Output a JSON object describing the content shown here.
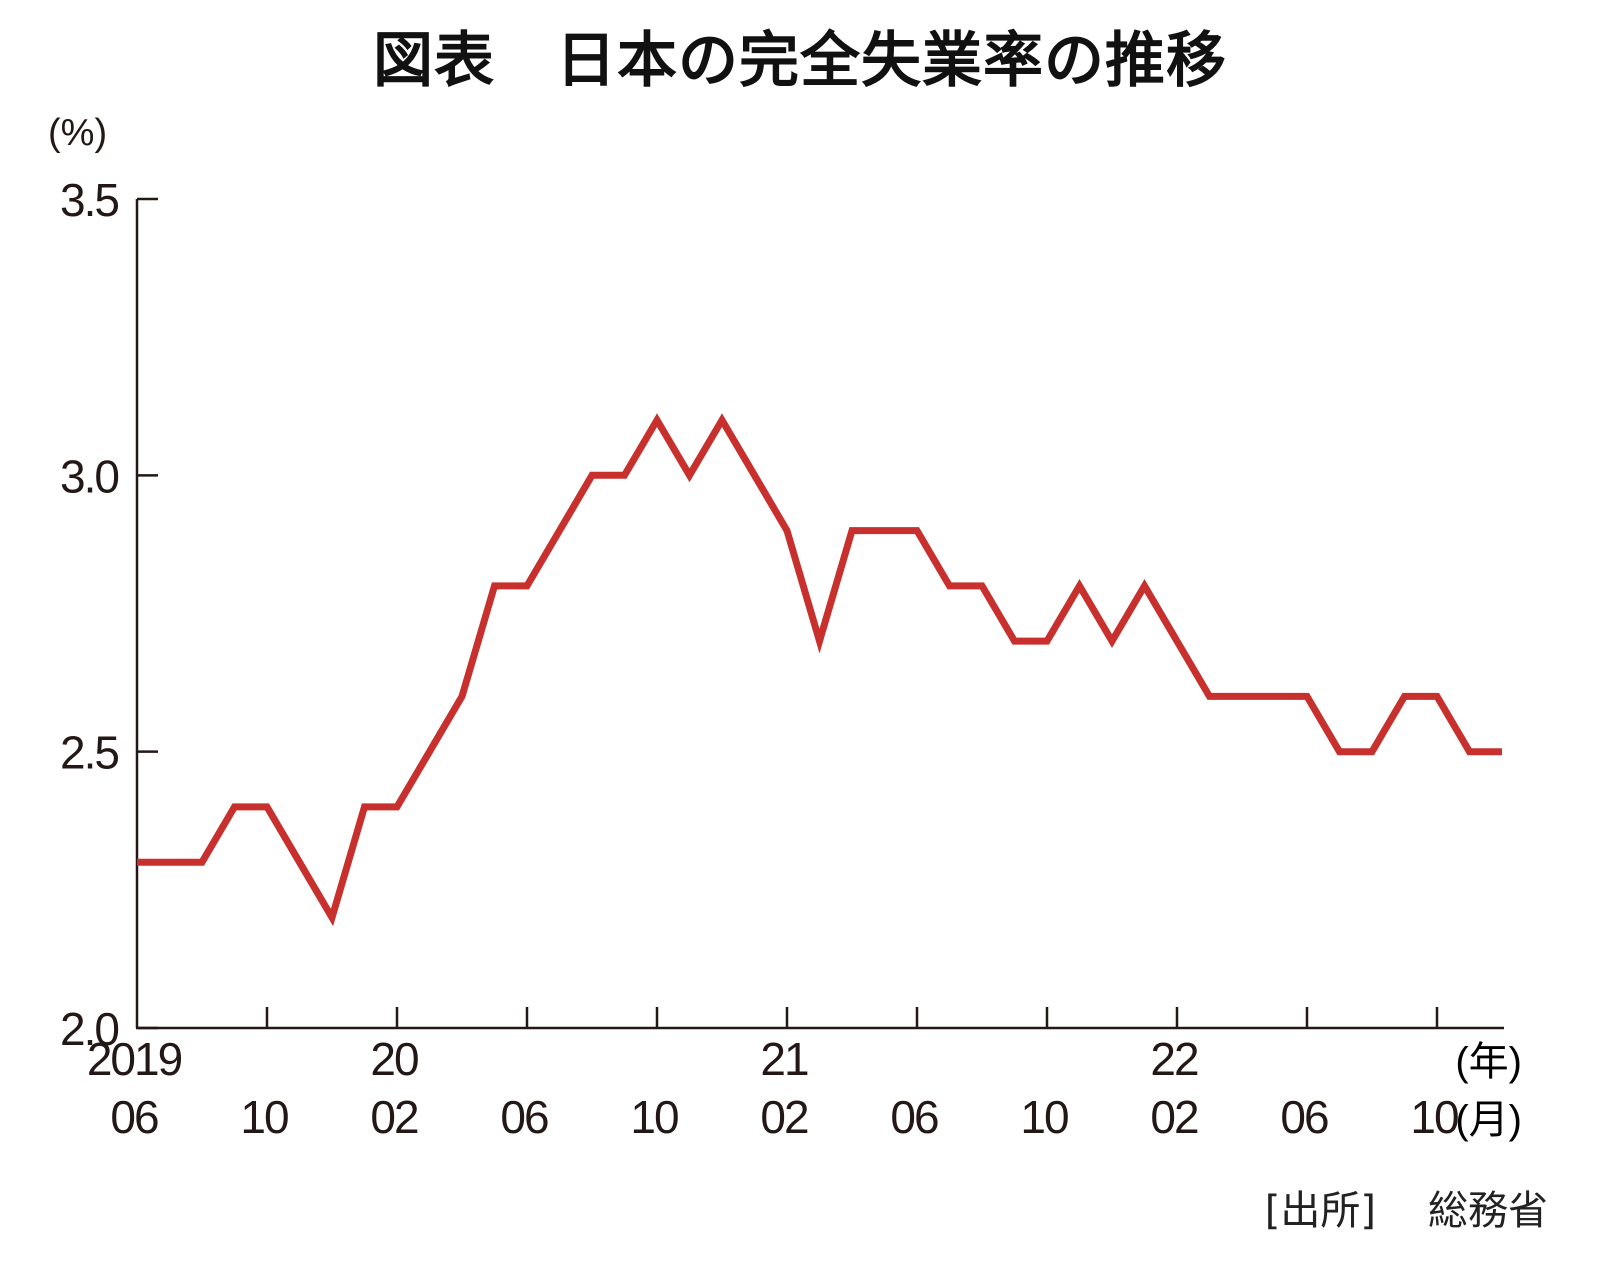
{
  "title": "図表　日本の完全失業率の推移",
  "y_unit": "(%)",
  "x_unit_year": "(年)",
  "x_unit_month": "(月)",
  "source_label": "[出所]",
  "source_value": "総務省",
  "colors": {
    "line": "#C8302E",
    "axis": "#231815"
  },
  "chart_data": {
    "type": "line",
    "title": "図表　日本の完全失業率の推移",
    "xlabel": "(年)(月)",
    "ylabel": "(%)",
    "ylim": [
      2.0,
      3.5
    ],
    "yticks": [
      "2.0",
      "2.5",
      "3.0",
      "3.5"
    ],
    "xtick_labels": [
      {
        "year": "2019",
        "month": "06"
      },
      {
        "year": "",
        "month": "10"
      },
      {
        "year": "20",
        "month": "02"
      },
      {
        "year": "",
        "month": "06"
      },
      {
        "year": "",
        "month": "10"
      },
      {
        "year": "21",
        "month": "02"
      },
      {
        "year": "",
        "month": "06"
      },
      {
        "year": "",
        "month": "10"
      },
      {
        "year": "22",
        "month": "02"
      },
      {
        "year": "",
        "month": "06"
      },
      {
        "year": "",
        "month": "10"
      }
    ],
    "grid": false,
    "legend": false,
    "x": [
      "2019-06",
      "2019-07",
      "2019-08",
      "2019-09",
      "2019-10",
      "2019-11",
      "2019-12",
      "2020-01",
      "2020-02",
      "2020-03",
      "2020-04",
      "2020-05",
      "2020-06",
      "2020-07",
      "2020-08",
      "2020-09",
      "2020-10",
      "2020-11",
      "2020-12",
      "2021-01",
      "2021-02",
      "2021-03",
      "2021-04",
      "2021-05",
      "2021-06",
      "2021-07",
      "2021-08",
      "2021-09",
      "2021-10",
      "2021-11",
      "2021-12",
      "2022-01",
      "2022-02",
      "2022-03",
      "2022-04",
      "2022-05",
      "2022-06",
      "2022-07",
      "2022-08",
      "2022-09",
      "2022-10",
      "2022-11",
      "2022-12"
    ],
    "series": [
      {
        "name": "完全失業率",
        "values": [
          2.3,
          2.3,
          2.3,
          2.4,
          2.4,
          2.3,
          2.2,
          2.4,
          2.4,
          2.5,
          2.6,
          2.8,
          2.8,
          2.9,
          3.0,
          3.0,
          3.1,
          3.0,
          3.1,
          3.0,
          2.9,
          2.7,
          2.9,
          2.9,
          2.9,
          2.8,
          2.8,
          2.7,
          2.7,
          2.8,
          2.7,
          2.8,
          2.7,
          2.6,
          2.6,
          2.6,
          2.6,
          2.5,
          2.5,
          2.6,
          2.6,
          2.5,
          2.5
        ]
      }
    ]
  }
}
